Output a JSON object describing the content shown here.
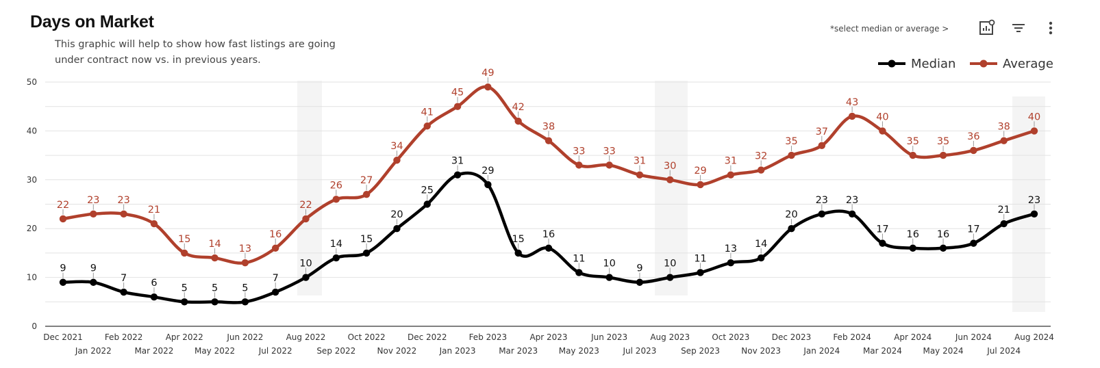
{
  "header": {
    "title": "Days on Market",
    "subtitle_line1": "This graphic will help to show how fast listings are going",
    "subtitle_line2": "under contract now vs. in previous years.",
    "hint": "*select median or average >"
  },
  "toolbar": {
    "icons": [
      "chart-settings-icon",
      "filter-icon",
      "more-vert-icon"
    ]
  },
  "colors": {
    "median": "#000000",
    "average": "#b0402c",
    "grid": "#e2e2e2",
    "highlight": "#f4f4f4"
  },
  "chart_data": {
    "type": "line",
    "title": "Days on Market",
    "categories": [
      "Dec 2021",
      "Jan 2022",
      "Feb 2022",
      "Mar 2022",
      "Apr 2022",
      "May 2022",
      "Jun 2022",
      "Jul 2022",
      "Aug 2022",
      "Sep 2022",
      "Oct 2022",
      "Nov 2022",
      "Dec 2022",
      "Jan 2023",
      "Feb 2023",
      "Mar 2023",
      "Apr 2023",
      "May 2023",
      "Jun 2023",
      "Jul 2023",
      "Aug 2023",
      "Sep 2023",
      "Oct 2023",
      "Nov 2023",
      "Dec 2023",
      "Jan 2024",
      "Feb 2024",
      "Mar 2024",
      "Apr 2024",
      "May 2024",
      "Jun 2024",
      "Jul 2024",
      "Aug 2024"
    ],
    "series": [
      {
        "name": "Median",
        "values": [
          9,
          9,
          7,
          6,
          5,
          5,
          5,
          7,
          10,
          14,
          15,
          20,
          25,
          31,
          29,
          15,
          16,
          11,
          10,
          9,
          10,
          11,
          13,
          14,
          20,
          23,
          23,
          17,
          16,
          16,
          17,
          21,
          23
        ]
      },
      {
        "name": "Average",
        "values": [
          22,
          23,
          23,
          21,
          15,
          14,
          13,
          16,
          22,
          26,
          27,
          34,
          41,
          45,
          49,
          42,
          38,
          33,
          33,
          31,
          30,
          29,
          31,
          32,
          35,
          37,
          43,
          40,
          35,
          35,
          36,
          38,
          40
        ]
      }
    ],
    "y_ticks": [
      "0",
      "10",
      "20",
      "30",
      "40",
      "50"
    ],
    "ylim": [
      0,
      50
    ],
    "highlighted_months": [
      "Aug 2022",
      "Aug 2023",
      "Aug 2024"
    ],
    "grid": true,
    "legend_position": "top-right"
  }
}
